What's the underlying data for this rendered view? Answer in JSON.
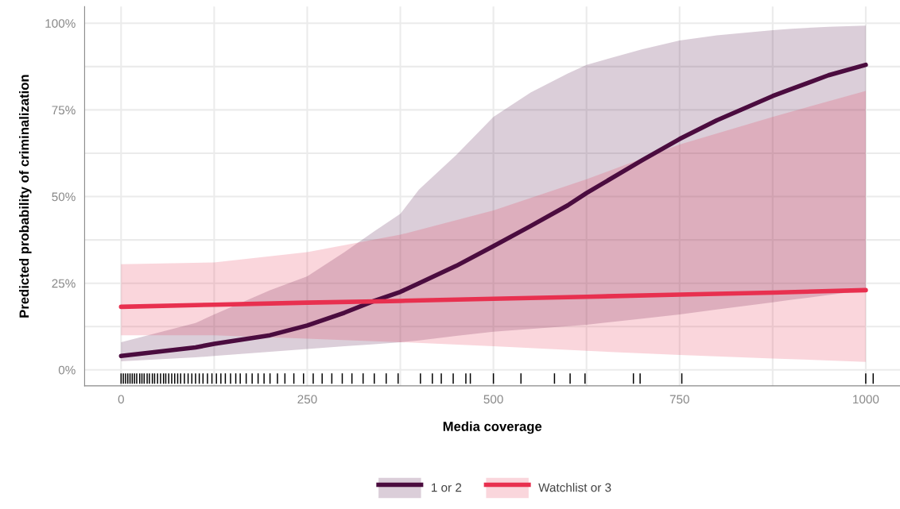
{
  "chart_data": {
    "type": "line",
    "xlabel": "Media coverage",
    "ylabel": "Predicted probability of criminalization",
    "xlim": [
      -49,
      1046
    ],
    "ylim": [
      -4.6,
      104.8
    ],
    "xticks": [
      0,
      {
        "value": 125,
        "label": null
      },
      250,
      {
        "value": 375,
        "label": null
      },
      500,
      {
        "value": 625,
        "label": null
      },
      750,
      {
        "value": 875,
        "label": null
      },
      1000
    ],
    "yticks": [
      {
        "value": 0,
        "label": "0%"
      },
      {
        "value": 12.5,
        "label": null
      },
      {
        "value": 25,
        "label": "25%"
      },
      {
        "value": 37.5,
        "label": null
      },
      {
        "value": 50,
        "label": "50%"
      },
      {
        "value": 62.5,
        "label": null
      },
      {
        "value": 75,
        "label": "75%"
      },
      {
        "value": 87.5,
        "label": null
      },
      {
        "value": 100,
        "label": "100%"
      }
    ],
    "grid": true,
    "legend": "bottom",
    "line_style": "solid",
    "series": [
      {
        "name": "1 or 2",
        "color": "#4b0c3f",
        "x": [
          0,
          100,
          125,
          200,
          250,
          300,
          340,
          375,
          400,
          450,
          500,
          550,
          600,
          625,
          700,
          750,
          800,
          875,
          900,
          950,
          1000
        ],
        "values": [
          4,
          6.5,
          7.5,
          10,
          12.8,
          16.5,
          19.9,
          22.5,
          25,
          30,
          35.7,
          41.5,
          47.5,
          51,
          60.5,
          66.6,
          72,
          79,
          81,
          85,
          88
        ],
        "lower": [
          2.5,
          3.6,
          4,
          5.2,
          6,
          6.8,
          7.4,
          8,
          8.5,
          9.8,
          11,
          11.8,
          12.6,
          13,
          14.8,
          16,
          17.4,
          19.5,
          20.2,
          21.6,
          23
        ],
        "upper": [
          8,
          13.5,
          16,
          23,
          27,
          34,
          40,
          45,
          52,
          62,
          73,
          80,
          85.5,
          88,
          92.5,
          95,
          96.5,
          98,
          98.4,
          99,
          99.3
        ]
      },
      {
        "name": "Watchlist or 3",
        "color": "#e8304f",
        "x": [
          0,
          125,
          250,
          375,
          500,
          625,
          750,
          875,
          1000
        ],
        "values": [
          18.2,
          18.8,
          19.4,
          19.9,
          20.5,
          21.1,
          21.7,
          22.3,
          23
        ],
        "lower": [
          10,
          10,
          9,
          8,
          6.8,
          5.5,
          4.3,
          3.3,
          2.3
        ],
        "upper": [
          30.5,
          31,
          34,
          39,
          46,
          55,
          65,
          73,
          80.5
        ]
      },
      {
        "type": "bar",
        "color": "#000000",
        "base": [
          -1,
          -1,
          -1,
          -1,
          -1,
          -1,
          -1,
          -1,
          -1,
          -1,
          -1,
          -1,
          -1,
          -1,
          -1,
          -1,
          -1,
          -1,
          -1,
          -1,
          -1,
          -1,
          -1,
          -1,
          -1,
          -1,
          -1,
          -1,
          -1,
          -1,
          -1,
          -1,
          -1,
          -1,
          -1,
          -1,
          -1,
          -1,
          -1,
          -1,
          -1,
          -1,
          -1,
          -1,
          -1,
          -1,
          -1,
          -1,
          -1,
          -1,
          -1,
          -1,
          -1,
          -1,
          -1,
          -1,
          -1,
          -1,
          -1,
          -1,
          -1,
          -1,
          -1,
          -1,
          -1,
          -1,
          -1,
          -1,
          -1,
          -1,
          -1,
          -1
        ],
        "x": [
          0,
          3,
          6,
          9,
          12,
          15,
          18,
          21,
          25,
          28,
          31,
          35,
          38,
          42,
          45,
          49,
          53,
          57,
          60,
          64,
          68,
          72,
          76,
          80,
          85,
          90,
          95,
          100,
          105,
          110,
          116,
          122,
          128,
          134,
          140,
          147,
          154,
          160,
          168,
          176,
          184,
          192,
          200,
          210,
          220,
          232,
          245,
          258,
          270,
          283,
          297,
          310,
          325,
          340,
          356,
          372,
          402,
          418,
          430,
          446,
          463,
          469,
          500,
          537,
          582,
          603,
          623,
          688,
          697,
          753,
          1000,
          1010
        ],
        "values": [
          -3,
          -3,
          -3,
          -3,
          -3,
          -3,
          -3,
          -3,
          -3,
          -3,
          -3,
          -3,
          -3,
          -3,
          -3,
          -3,
          -3,
          -3,
          -3,
          -3,
          -3,
          -3,
          -3,
          -3,
          -3,
          -3,
          -3,
          -3,
          -3,
          -3,
          -3,
          -3,
          -3,
          -3,
          -3,
          -3,
          -3,
          -3,
          -3,
          -3,
          -3,
          -3,
          -3,
          -3,
          -3,
          -3,
          -3,
          -3,
          -3,
          -3,
          -3,
          -3,
          -3,
          -3,
          -3,
          -3,
          -3,
          -3,
          -3,
          -3,
          -3,
          -3,
          -3,
          -3,
          -3,
          -3,
          -3,
          -3,
          -3,
          -3,
          -3,
          -3
        ]
      }
    ]
  }
}
